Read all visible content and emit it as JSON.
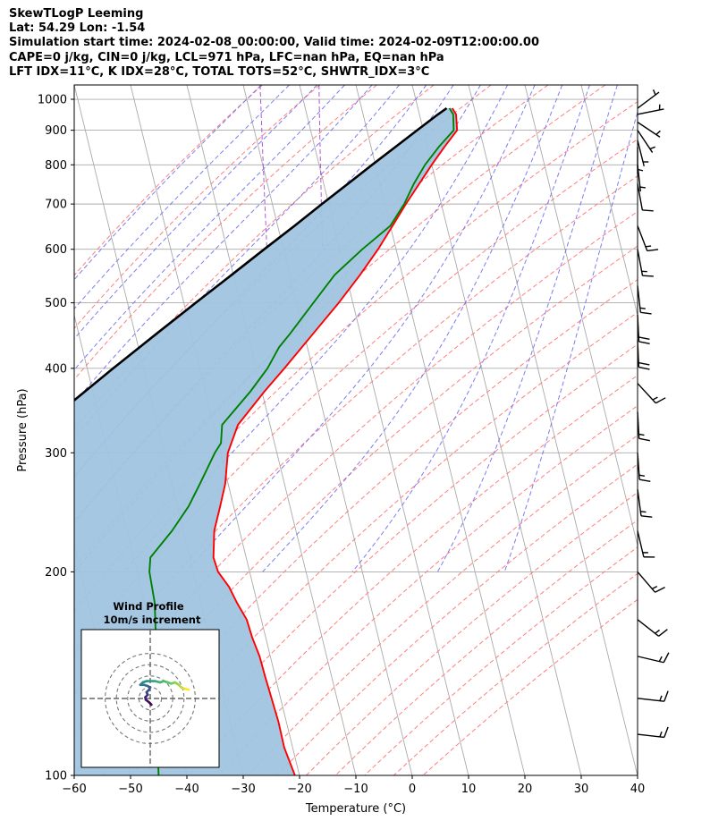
{
  "title_lines": [
    "SkewTLogP Leeming",
    "Lat: 54.29   Lon: -1.54",
    "Simulation start time: 2024-02-08_00:00:00, Valid time: 2024-02-09T12:00:00.00",
    "CAPE=0 j/kg, CIN=0 j/kg, LCL=971 hPa, LFC=nan hPa, EQ=nan hPa",
    "LFT IDX=11°C, K IDX=28°C, TOTAL TOTS=52°C, SHWTR_IDX=3°C"
  ],
  "chart_data": {
    "type": "line",
    "xlabel": "Temperature (°C)",
    "ylabel": "Pressure (hPa)",
    "xlim": [
      -60,
      40
    ],
    "ylim": [
      1050,
      100
    ],
    "y_scale": "log",
    "x_ticks": [
      -60,
      -50,
      -40,
      -30,
      -20,
      -10,
      0,
      10,
      20,
      30,
      40
    ],
    "x_tick_labels": [
      "−60",
      "−50",
      "−40",
      "−30",
      "−20",
      "−10",
      "0",
      "10",
      "20",
      "30",
      "40"
    ],
    "y_ticks": [
      100,
      200,
      300,
      400,
      500,
      600,
      700,
      800,
      900,
      1000
    ],
    "y_tick_labels": [
      "100",
      "200",
      "300",
      "400",
      "500",
      "600",
      "700",
      "800",
      "900",
      "1000"
    ],
    "grid": true,
    "colors": {
      "temperature": "#ff0000",
      "dewpoint": "#008000",
      "parcel": "#000000",
      "fill": "#a0c4df",
      "dry_adiabats": "#ff7070",
      "moist_adiabats": "#6666ee",
      "mixing_ratio": "#aa44cc",
      "isotherms": "#aaaaaa"
    },
    "series": [
      {
        "key": "temperature",
        "pressure": [
          970,
          950,
          900,
          850,
          800,
          700,
          650,
          600,
          550,
          500,
          450,
          400,
          370,
          330,
          300,
          270,
          250,
          230,
          210,
          200,
          190,
          180,
          170,
          160,
          150,
          140,
          130,
          120,
          110,
          100
        ],
        "values": [
          6.1,
          6.5,
          6.0,
          3.0,
          0.0,
          -6.3,
          -9.6,
          -13.2,
          -17.5,
          -22.5,
          -28.4,
          -35.0,
          -39.5,
          -45.7,
          -48.7,
          -50.5,
          -52.4,
          -54.5,
          -55.8,
          -55.6,
          -54.3,
          -53.6,
          -52.6,
          -52.4,
          -51.9,
          -51.8,
          -51.6,
          -51.4,
          -51.5,
          -50.8
        ]
      },
      {
        "key": "dewpoint",
        "pressure": [
          970,
          950,
          900,
          850,
          800,
          750,
          700,
          650,
          600,
          550,
          500,
          450,
          430,
          400,
          370,
          330,
          310,
          300,
          270,
          250,
          230,
          210,
          200,
          180,
          160,
          140,
          120,
          100
        ],
        "values": [
          5.6,
          6.0,
          5.4,
          2.0,
          -1.2,
          -4.0,
          -6.6,
          -10.0,
          -16.0,
          -22.0,
          -27.0,
          -32.5,
          -35.0,
          -38.0,
          -42.0,
          -48.5,
          -49.5,
          -51.0,
          -55.0,
          -58.0,
          -62.0,
          -67.0,
          -67.8,
          -68.2,
          -69.5,
          -71.0,
          -73.0,
          -75.0
        ]
      },
      {
        "key": "parcel",
        "pressure": [
          970,
          950,
          900,
          850,
          800,
          750,
          700,
          650,
          600,
          550,
          500,
          450,
          400,
          350,
          300,
          250,
          200,
          150,
          125,
          100
        ],
        "values": [
          5.1,
          3.3,
          -1.1,
          -5.7,
          -10.6,
          -15.7,
          -21.2,
          -27.0,
          -33.4,
          -40.3,
          -47.9,
          -56.2,
          -65.4,
          -75.6,
          -87.1,
          -100.6,
          -116.6,
          -136.7,
          -149.4,
          -164.8
        ]
      }
    ],
    "inset": {
      "title": "Wind Profile",
      "subtitle": "10m/s increment",
      "ring_speeds_ms": [
        10,
        20,
        30,
        40
      ]
    },
    "wind_barbs": [
      {
        "p": 970,
        "u": 4,
        "v": 3
      },
      {
        "p": 950,
        "u": 5,
        "v": 1
      },
      {
        "p": 925,
        "u": 3,
        "v": -2
      },
      {
        "p": 900,
        "u": 2,
        "v": -3
      },
      {
        "p": 870,
        "u": 1,
        "v": -4
      },
      {
        "p": 850,
        "u": 0,
        "v": -6
      },
      {
        "p": 800,
        "u": 1,
        "v": -9
      },
      {
        "p": 750,
        "u": 2,
        "v": -11
      },
      {
        "p": 650,
        "u": 5,
        "v": -13
      },
      {
        "p": 600,
        "u": 3,
        "v": -16
      },
      {
        "p": 530,
        "u": 2,
        "v": -18
      },
      {
        "p": 480,
        "u": 1,
        "v": -20
      },
      {
        "p": 440,
        "u": 1,
        "v": -22
      },
      {
        "p": 380,
        "u": 12,
        "v": -13
      },
      {
        "p": 345,
        "u": 1,
        "v": -18
      },
      {
        "p": 300,
        "u": 1,
        "v": -14
      },
      {
        "p": 265,
        "u": 2,
        "v": -15
      },
      {
        "p": 230,
        "u": 4,
        "v": -17
      },
      {
        "p": 200,
        "u": 12,
        "v": -14
      },
      {
        "p": 170,
        "u": 14,
        "v": -11
      },
      {
        "p": 150,
        "u": 17,
        "v": -4
      },
      {
        "p": 130,
        "u": 18,
        "v": -2
      },
      {
        "p": 115,
        "u": 18,
        "v": -2
      }
    ],
    "hodograph": [
      {
        "u": 0.5,
        "v": -2.5
      },
      {
        "u": -0.5,
        "v": -1.5
      },
      {
        "u": -1.8,
        "v": -0.5
      },
      {
        "u": -2.0,
        "v": 0.5
      },
      {
        "u": -1.0,
        "v": 1.5
      },
      {
        "u": -1.5,
        "v": 2.5
      },
      {
        "u": -0.5,
        "v": 3.5
      },
      {
        "u": 0.0,
        "v": 4.5
      },
      {
        "u": -1.0,
        "v": 5.0
      },
      {
        "u": -2.5,
        "v": 5.5
      },
      {
        "u": -4.0,
        "v": 5.5
      },
      {
        "u": -3.0,
        "v": 6.5
      },
      {
        "u": -1.5,
        "v": 7.0
      },
      {
        "u": 0.0,
        "v": 7.0
      },
      {
        "u": 2.0,
        "v": 7.0
      },
      {
        "u": 4.0,
        "v": 6.5
      },
      {
        "u": 5.5,
        "v": 7.0
      },
      {
        "u": 7.0,
        "v": 6.5
      },
      {
        "u": 8.5,
        "v": 6.0
      },
      {
        "u": 10.0,
        "v": 6.5
      },
      {
        "u": 11.5,
        "v": 5.5
      },
      {
        "u": 12.5,
        "v": 4.5
      },
      {
        "u": 13.5,
        "v": 4.0
      },
      {
        "u": 14.5,
        "v": 3.8
      },
      {
        "u": 15.5,
        "v": 3.5
      }
    ]
  }
}
